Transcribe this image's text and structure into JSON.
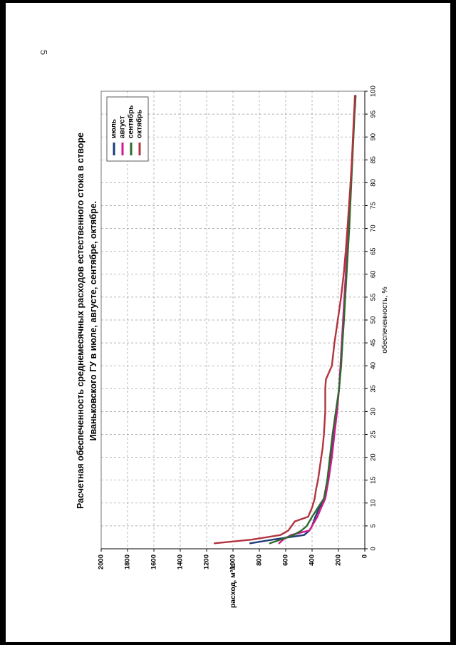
{
  "page_number": "5",
  "chart_data": {
    "type": "line",
    "title_line1": "Расчетная обеспеченность среднемесячных расходов естественного стока в створе",
    "title_line2": "Иваньковского ГУ в июле, августе, сентябре, октябре.",
    "xlabel": "обеспеченность, %",
    "ylabel": "расход, м³/с",
    "xlim": [
      0,
      100
    ],
    "ylim": [
      0,
      2000
    ],
    "x_ticks": [
      "0",
      "5",
      "10",
      "15",
      "20",
      "25",
      "30",
      "35",
      "40",
      "45",
      "50",
      "55",
      "60",
      "65",
      "70",
      "75",
      "80",
      "85",
      "90",
      "95",
      "100"
    ],
    "y_ticks": [
      "0",
      "200",
      "400",
      "600",
      "800",
      "1000",
      "1200",
      "1400",
      "1600",
      "1800",
      "2000"
    ],
    "grid": true,
    "legend_position": "top-right",
    "series": [
      {
        "name": "июль",
        "color": "#1f3a78",
        "points": [
          [
            1.2,
            870
          ],
          [
            2,
            700
          ],
          [
            3,
            460
          ],
          [
            4,
            420
          ],
          [
            5,
            400
          ],
          [
            7,
            375
          ],
          [
            9,
            345
          ],
          [
            11,
            300
          ],
          [
            15,
            280
          ],
          [
            20,
            260
          ],
          [
            25,
            240
          ],
          [
            30,
            215
          ],
          [
            35,
            195
          ],
          [
            40,
            180
          ],
          [
            45,
            170
          ],
          [
            50,
            160
          ],
          [
            55,
            150
          ],
          [
            60,
            140
          ],
          [
            65,
            130
          ],
          [
            70,
            120
          ],
          [
            75,
            112
          ],
          [
            80,
            104
          ],
          [
            85,
            96
          ],
          [
            90,
            88
          ],
          [
            95,
            80
          ],
          [
            97,
            75
          ],
          [
            99,
            70
          ]
        ]
      },
      {
        "name": "август",
        "color": "#d11a8f",
        "points": [
          [
            1.2,
            650
          ],
          [
            2,
            620
          ],
          [
            3,
            560
          ],
          [
            4,
            420
          ],
          [
            5,
            400
          ],
          [
            7,
            360
          ],
          [
            9,
            330
          ],
          [
            11,
            300
          ],
          [
            15,
            275
          ],
          [
            20,
            250
          ],
          [
            25,
            230
          ],
          [
            30,
            210
          ],
          [
            35,
            195
          ],
          [
            40,
            185
          ],
          [
            45,
            175
          ],
          [
            50,
            165
          ],
          [
            55,
            155
          ],
          [
            60,
            145
          ],
          [
            65,
            135
          ],
          [
            70,
            125
          ],
          [
            75,
            115
          ],
          [
            80,
            105
          ],
          [
            85,
            97
          ],
          [
            90,
            88
          ],
          [
            95,
            80
          ],
          [
            97,
            77
          ],
          [
            99,
            74
          ]
        ]
      },
      {
        "name": "сентябрь",
        "color": "#2e6b2e",
        "points": [
          [
            1.2,
            720
          ],
          [
            2,
            640
          ],
          [
            3,
            540
          ],
          [
            4,
            480
          ],
          [
            5,
            440
          ],
          [
            7,
            400
          ],
          [
            9,
            355
          ],
          [
            11,
            310
          ],
          [
            15,
            285
          ],
          [
            20,
            265
          ],
          [
            25,
            245
          ],
          [
            30,
            220
          ],
          [
            35,
            195
          ],
          [
            40,
            180
          ],
          [
            45,
            170
          ],
          [
            50,
            158
          ],
          [
            55,
            148
          ],
          [
            60,
            138
          ],
          [
            65,
            128
          ],
          [
            70,
            118
          ],
          [
            75,
            110
          ],
          [
            80,
            102
          ],
          [
            85,
            94
          ],
          [
            90,
            86
          ],
          [
            95,
            78
          ],
          [
            97,
            73
          ],
          [
            99,
            70
          ]
        ]
      },
      {
        "name": "октябрь",
        "color": "#b2333e",
        "points": [
          [
            1.2,
            1140
          ],
          [
            2,
            860
          ],
          [
            3,
            640
          ],
          [
            4,
            580
          ],
          [
            5,
            555
          ],
          [
            6,
            530
          ],
          [
            7,
            430
          ],
          [
            9,
            400
          ],
          [
            11,
            380
          ],
          [
            13,
            370
          ],
          [
            15,
            355
          ],
          [
            20,
            330
          ],
          [
            22,
            320
          ],
          [
            25,
            310
          ],
          [
            30,
            300
          ],
          [
            35,
            300
          ],
          [
            37,
            295
          ],
          [
            40,
            250
          ],
          [
            45,
            230
          ],
          [
            50,
            205
          ],
          [
            55,
            180
          ],
          [
            60,
            160
          ],
          [
            65,
            145
          ],
          [
            70,
            132
          ],
          [
            75,
            120
          ],
          [
            80,
            108
          ],
          [
            85,
            98
          ],
          [
            90,
            90
          ],
          [
            95,
            82
          ],
          [
            97,
            78
          ],
          [
            99,
            75
          ]
        ]
      }
    ]
  }
}
